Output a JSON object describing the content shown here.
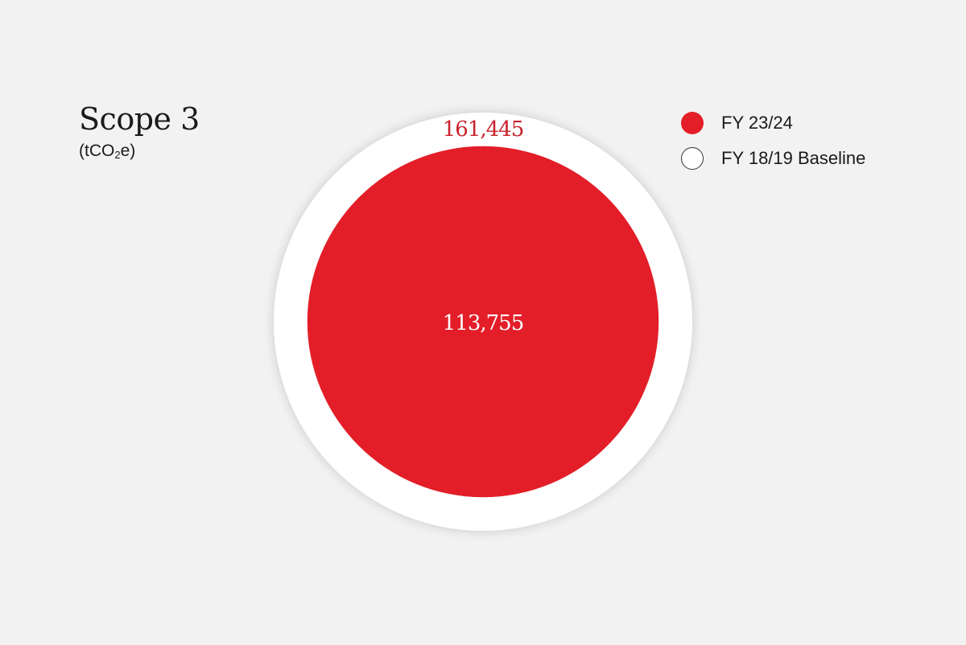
{
  "title_part1": "Scope 3",
  "unit": {
    "prefix": "(tCO",
    "subscript": "2",
    "suffix": "e)"
  },
  "legend": [
    {
      "label": "FY 23/24",
      "color": "#e31e28",
      "style": "filled"
    },
    {
      "label": "FY 18/19 Baseline",
      "color": "#ffffff",
      "style": "outline"
    }
  ],
  "chart_data": {
    "type": "proportional-area-circles",
    "title": "Scope 3",
    "unit_label": "(tCO2e)",
    "series": [
      {
        "name": "FY 18/19 Baseline",
        "value": 161445,
        "label": "161,445",
        "color": "#ffffff",
        "label_color": "#c8222b"
      },
      {
        "name": "FY 23/24",
        "value": 113755,
        "label": "113,755",
        "color": "#e31e28",
        "label_color": "#ffffff"
      }
    ],
    "legend_position": "top-right"
  }
}
